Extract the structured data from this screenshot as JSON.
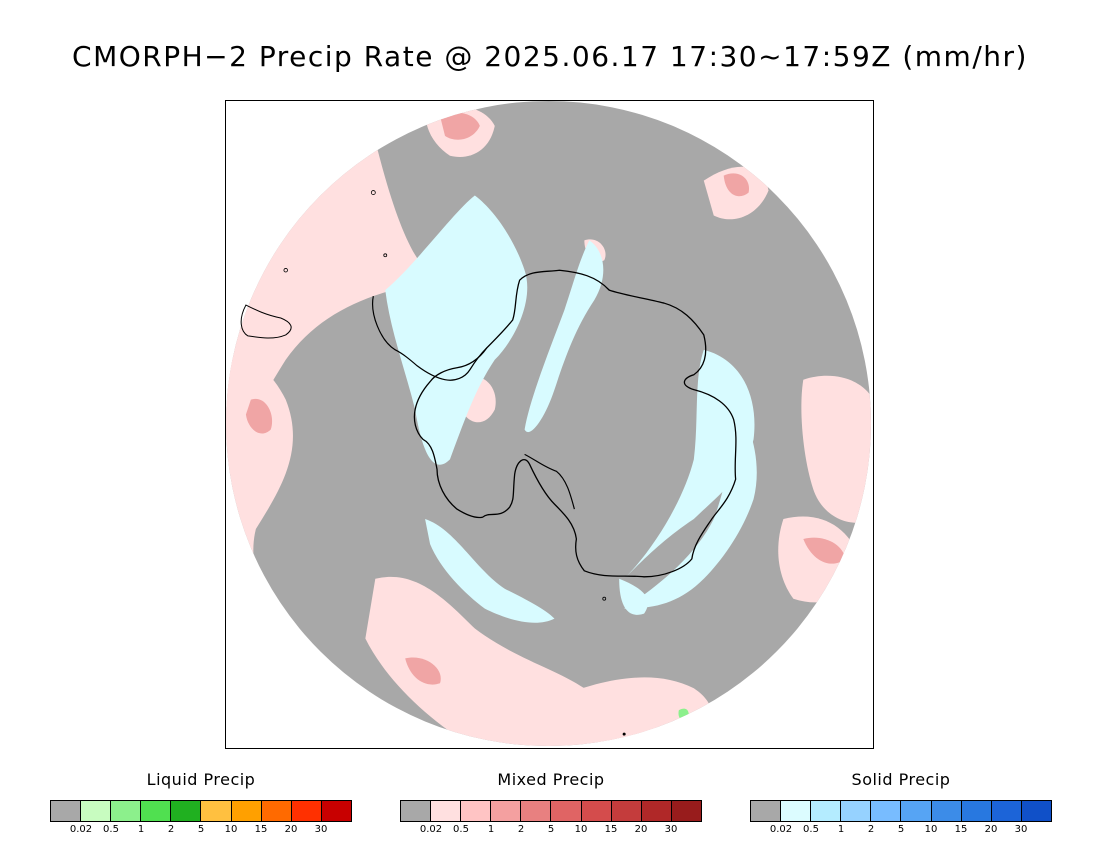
{
  "title": "CMORPH−2 Precip Rate @ 2025.06.17 17:30~17:59Z (mm/hr)",
  "map": {
    "projection": "south polar stereographic",
    "colors": {
      "background": "#a8a8a8",
      "land_outline": "#000000",
      "mixed_light": "#ffe0e0",
      "mixed_medium": "#f0a5a5",
      "mixed_strong": "#e07a7a",
      "solid_light": "#d8fbff",
      "liquid_light": "#8cf08c"
    }
  },
  "legends": [
    {
      "title": "Liquid Precip",
      "colors": [
        "#a8a8a8",
        "#c8fcc0",
        "#8cf08c",
        "#50e050",
        "#20b020",
        "#ffc040",
        "#ffa000",
        "#ff6a00",
        "#ff3000",
        "#c80000"
      ],
      "ticks": [
        "0.02",
        "0.5",
        "1",
        "2",
        "5",
        "10",
        "15",
        "20",
        "30"
      ]
    },
    {
      "title": "Mixed Precip",
      "colors": [
        "#a8a8a8",
        "#ffe0e0",
        "#ffc4c4",
        "#f4a0a0",
        "#e88080",
        "#e06464",
        "#d44c4c",
        "#c43c3c",
        "#b02828",
        "#981c1c"
      ],
      "ticks": [
        "0.02",
        "0.5",
        "1",
        "2",
        "5",
        "10",
        "15",
        "20",
        "30"
      ]
    },
    {
      "title": "Solid Precip",
      "colors": [
        "#a8a8a8",
        "#dcfcff",
        "#b4ecff",
        "#96d2ff",
        "#78bcff",
        "#56a4f4",
        "#3c8ce8",
        "#2878e0",
        "#1c64d8",
        "#1050c8"
      ],
      "ticks": [
        "0.02",
        "0.5",
        "1",
        "2",
        "5",
        "10",
        "15",
        "20",
        "30"
      ]
    }
  ]
}
